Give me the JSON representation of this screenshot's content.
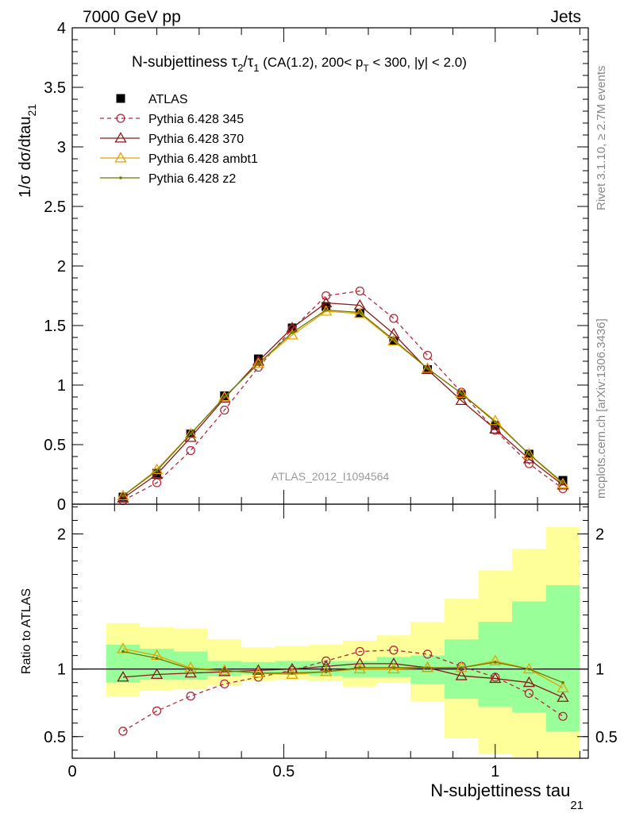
{
  "header": {
    "left": "7000 GeV pp",
    "right": "Jets"
  },
  "side_labels": {
    "rivet": "Rivet 3.1.10, ≥ 2.7M events",
    "mcplots": "mcplots.cern.ch [arXiv:1306.3436]"
  },
  "watermark": "ATLAS_2012_I1094564",
  "chart_data": [
    {
      "type": "line",
      "title": "N-subjettiness τ2/τ1 (CA(1.2), 200< pT < 300, |y| < 2.0)",
      "title_parts": {
        "main": "N-subjettiness ",
        "tau": "τ",
        "sub2": "2",
        "slash": "/",
        "sub1": "1",
        "rest_a": " (CA(1.2), 200< p",
        "subT": "T",
        "rest_b": " < 300, |y| < 2.0)"
      },
      "ylabel": "1/σ dσ/dtau",
      "ylabel_sub": "21",
      "xlim": [
        0,
        1.22
      ],
      "ylim": [
        0,
        4
      ],
      "yticks": [
        "0",
        "0.5",
        "1",
        "1.5",
        "2",
        "2.5",
        "3",
        "3.5",
        "4"
      ],
      "legend_position": "top-left",
      "x": [
        0.12,
        0.2,
        0.28,
        0.36,
        0.44,
        0.52,
        0.6,
        0.68,
        0.76,
        0.84,
        0.92,
        1.0,
        1.08,
        1.16
      ],
      "series": [
        {
          "name": "ATLAS",
          "color": "#000000",
          "style": "marker-square",
          "values": [
            0.06,
            0.26,
            0.59,
            0.91,
            1.22,
            1.48,
            1.66,
            1.6,
            1.37,
            1.13,
            0.92,
            0.66,
            0.42,
            0.2
          ]
        },
        {
          "name": "Pythia 6.428 345",
          "color": "#b22a3e",
          "style": "dashed-open-circle",
          "values": [
            0.03,
            0.18,
            0.45,
            0.79,
            1.15,
            1.47,
            1.75,
            1.79,
            1.56,
            1.25,
            0.94,
            0.62,
            0.34,
            0.13
          ]
        },
        {
          "name": "Pythia 6.428 370",
          "color": "#8b1a1a",
          "style": "solid-open-triangle",
          "values": [
            0.05,
            0.25,
            0.56,
            0.89,
            1.2,
            1.48,
            1.69,
            1.67,
            1.43,
            1.13,
            0.87,
            0.63,
            0.38,
            0.16
          ]
        },
        {
          "name": "Pythia 6.428 ambt1",
          "color": "#e8a000",
          "style": "solid-open-triangle",
          "values": [
            0.07,
            0.29,
            0.59,
            0.9,
            1.18,
            1.42,
            1.62,
            1.6,
            1.37,
            1.14,
            0.93,
            0.7,
            0.42,
            0.17
          ]
        },
        {
          "name": "Pythia 6.428 z2",
          "color": "#6b7a00",
          "style": "solid-dot",
          "values": [
            0.07,
            0.28,
            0.59,
            0.9,
            1.18,
            1.44,
            1.63,
            1.61,
            1.38,
            1.14,
            0.93,
            0.69,
            0.42,
            0.18
          ]
        }
      ]
    },
    {
      "type": "line",
      "title": "",
      "xlabel": "N-subjettiness tau",
      "xlabel_sub": "21",
      "ylabel": "Ratio to ATLAS",
      "xlim": [
        0,
        1.22
      ],
      "ylim": [
        0.34,
        2.22
      ],
      "xticks": [
        "0",
        "0.5",
        "1"
      ],
      "yticks": [
        "0.5",
        "1",
        "2"
      ],
      "x": [
        0.12,
        0.2,
        0.28,
        0.36,
        0.44,
        0.52,
        0.6,
        0.68,
        0.76,
        0.84,
        0.92,
        1.0,
        1.08,
        1.16
      ],
      "band_edges": [
        0.08,
        0.16,
        0.24,
        0.32,
        0.4,
        0.48,
        0.56,
        0.64,
        0.72,
        0.8,
        0.88,
        0.96,
        1.04,
        1.12,
        1.2
      ],
      "band_stat": {
        "lo": [
          0.9,
          0.92,
          0.92,
          0.95,
          0.96,
          0.96,
          0.95,
          0.94,
          0.94,
          0.89,
          0.78,
          0.72,
          0.68,
          0.54
        ],
        "hi": [
          1.18,
          1.15,
          1.13,
          1.06,
          1.05,
          1.06,
          1.06,
          1.06,
          1.09,
          1.1,
          1.22,
          1.35,
          1.5,
          1.62
        ]
      },
      "band_total": {
        "lo": [
          0.8,
          0.84,
          0.85,
          0.88,
          0.91,
          0.92,
          0.91,
          0.87,
          0.9,
          0.76,
          0.49,
          0.37,
          0.35,
          0.35
        ],
        "hi": [
          1.34,
          1.31,
          1.3,
          1.22,
          1.16,
          1.17,
          1.18,
          1.21,
          1.25,
          1.35,
          1.52,
          1.73,
          1.89,
          2.05
        ]
      },
      "series": [
        {
          "name": "Pythia 6.428 345",
          "color": "#b22a3e",
          "style": "dashed-open-circle",
          "values": [
            0.54,
            0.69,
            0.8,
            0.89,
            0.94,
            0.99,
            1.06,
            1.13,
            1.14,
            1.11,
            1.02,
            0.94,
            0.82,
            0.65
          ]
        },
        {
          "name": "Pythia 6.428 370",
          "color": "#8b1a1a",
          "style": "solid-open-triangle",
          "values": [
            0.94,
            0.96,
            0.97,
            0.98,
            0.99,
            1.0,
            1.02,
            1.04,
            1.04,
            1.01,
            0.95,
            0.93,
            0.9,
            0.79
          ]
        },
        {
          "name": "Pythia 6.428 ambt1",
          "color": "#e8a000",
          "style": "solid-open-triangle",
          "values": [
            1.15,
            1.1,
            1.01,
            0.99,
            0.97,
            0.96,
            0.98,
            1.0,
            1.0,
            1.01,
            1.01,
            1.06,
            1.0,
            0.86
          ]
        },
        {
          "name": "Pythia 6.428 z2",
          "color": "#6b7a00",
          "style": "solid-dot",
          "values": [
            1.13,
            1.08,
            1.0,
            0.99,
            0.97,
            0.97,
            0.98,
            1.01,
            1.01,
            1.01,
            1.01,
            1.05,
            1.0,
            0.9
          ]
        }
      ]
    }
  ]
}
